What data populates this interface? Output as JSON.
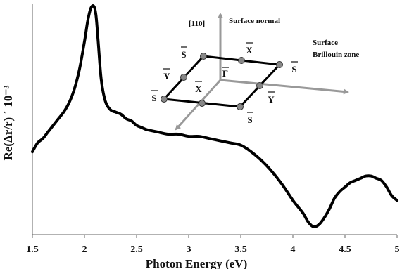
{
  "chart_data": {
    "type": "line",
    "title": "",
    "xlabel": "Photon Energy (eV)",
    "ylabel": "Re(Δr/r) ´ 10⁻³",
    "xlim": [
      1.5,
      5.0
    ],
    "xticks": [
      "1.5",
      "2",
      "2.5",
      "3",
      "3.5",
      "4",
      "4.5",
      "5"
    ],
    "ylim": [
      0,
      1
    ],
    "grid": false,
    "legend": "none",
    "line_color": "#000000",
    "series": [
      {
        "x": [
          1.5,
          1.55,
          1.6,
          1.65,
          1.7,
          1.75,
          1.8,
          1.85,
          1.9,
          1.95,
          2.0,
          2.03,
          2.06,
          2.09,
          2.11,
          2.13,
          2.16,
          2.2,
          2.25,
          2.3,
          2.35,
          2.4,
          2.45,
          2.5,
          2.55,
          2.6,
          2.7,
          2.8,
          2.9,
          3.0,
          3.1,
          3.2,
          3.3,
          3.4,
          3.5,
          3.6,
          3.7,
          3.8,
          3.9,
          4.0,
          4.05,
          4.1,
          4.15,
          4.2,
          4.25,
          4.3,
          4.35,
          4.4,
          4.45,
          4.5,
          4.55,
          4.6,
          4.65,
          4.7,
          4.75,
          4.8,
          4.85,
          4.9,
          4.95,
          5.0
        ],
        "y": [
          0.35,
          0.39,
          0.41,
          0.44,
          0.47,
          0.5,
          0.53,
          0.57,
          0.63,
          0.72,
          0.85,
          0.94,
          1.0,
          1.01,
          0.97,
          0.86,
          0.68,
          0.58,
          0.54,
          0.53,
          0.52,
          0.5,
          0.49,
          0.47,
          0.46,
          0.45,
          0.44,
          0.43,
          0.43,
          0.42,
          0.42,
          0.41,
          0.4,
          0.39,
          0.38,
          0.35,
          0.31,
          0.26,
          0.2,
          0.13,
          0.1,
          0.07,
          0.03,
          0.01,
          0.02,
          0.05,
          0.09,
          0.14,
          0.17,
          0.19,
          0.21,
          0.22,
          0.23,
          0.24,
          0.24,
          0.23,
          0.22,
          0.19,
          0.15,
          0.13
        ]
      }
    ],
    "inset": {
      "labels": {
        "direction": "[110]",
        "surface_normal": "Surface normal",
        "zone_line1": "Surface",
        "zone_line2": "Brillouin zone",
        "S": "S",
        "X": "X",
        "Y": "Y",
        "Gamma": "Γ"
      },
      "arrow_color": "#999999",
      "zone_color": "#000000",
      "point_color": "#888888"
    }
  }
}
